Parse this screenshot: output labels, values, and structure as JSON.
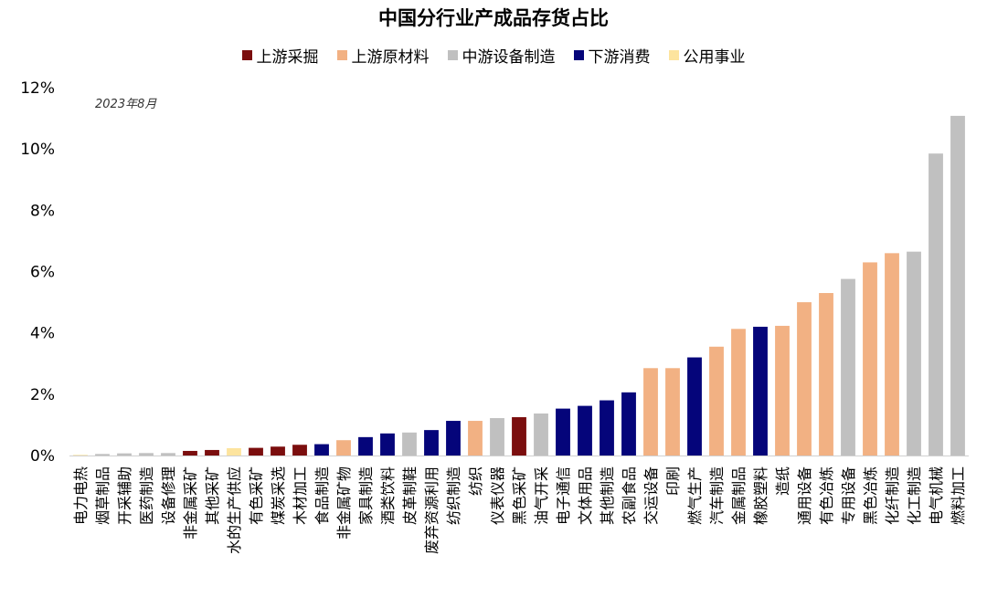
{
  "chart_data": {
    "type": "bar",
    "title": "中国分行业产成品存货占比",
    "annotation": "2023年8月",
    "ylim": [
      0,
      12
    ],
    "yticks": [
      "0%",
      "2%",
      "4%",
      "6%",
      "8%",
      "10%",
      "12%"
    ],
    "grid": false,
    "legend_position": "top",
    "legend": [
      {
        "name": "上游采掘",
        "color": "#7b0e0e"
      },
      {
        "name": "上游原材料",
        "color": "#f2b183"
      },
      {
        "name": "中游设备制造",
        "color": "#c0c0c0"
      },
      {
        "name": "下游消费",
        "color": "#05057a"
      },
      {
        "name": "公用事业",
        "color": "#fde49e"
      }
    ],
    "categories": [
      "电力电热",
      "烟草制品",
      "开采辅助",
      "医药制造",
      "设备修理",
      "非金属采矿",
      "其他采矿",
      "水的生产供应",
      "有色采矿",
      "煤炭采选",
      "木材加工",
      "食品制造",
      "非金属矿物",
      "家具制造",
      "酒类饮料",
      "皮革制鞋",
      "废弃资源利用",
      "纺织制造",
      "纺织",
      "仪表仪器",
      "黑色采矿",
      "油气开采",
      "电子通信",
      "文体用品",
      "其他制造",
      "农副食品",
      "交运设备",
      "印刷",
      "燃气生产",
      "汽车制造",
      "金属制品",
      "橡胶塑料",
      "造纸",
      "通用设备",
      "有色冶炼",
      "专用设备",
      "黑色冶炼",
      "化纤制造",
      "化工制造",
      "电气机械",
      "燃料加工"
    ],
    "values": [
      0.02,
      0.05,
      0.07,
      0.08,
      0.08,
      0.15,
      0.18,
      0.24,
      0.25,
      0.29,
      0.35,
      0.37,
      0.5,
      0.6,
      0.72,
      0.75,
      0.83,
      1.13,
      1.13,
      1.22,
      1.25,
      1.37,
      1.53,
      1.62,
      1.8,
      2.06,
      2.85,
      2.85,
      3.2,
      3.55,
      4.13,
      4.2,
      4.23,
      5.0,
      5.3,
      5.76,
      6.3,
      6.6,
      6.65,
      9.85,
      11.08
    ],
    "groups": [
      4,
      2,
      2,
      2,
      2,
      0,
      0,
      4,
      0,
      0,
      0,
      3,
      1,
      3,
      3,
      2,
      3,
      3,
      1,
      2,
      0,
      2,
      3,
      3,
      3,
      3,
      1,
      1,
      3,
      1,
      1,
      3,
      1,
      1,
      1,
      2,
      1,
      1,
      2,
      2,
      2
    ]
  }
}
